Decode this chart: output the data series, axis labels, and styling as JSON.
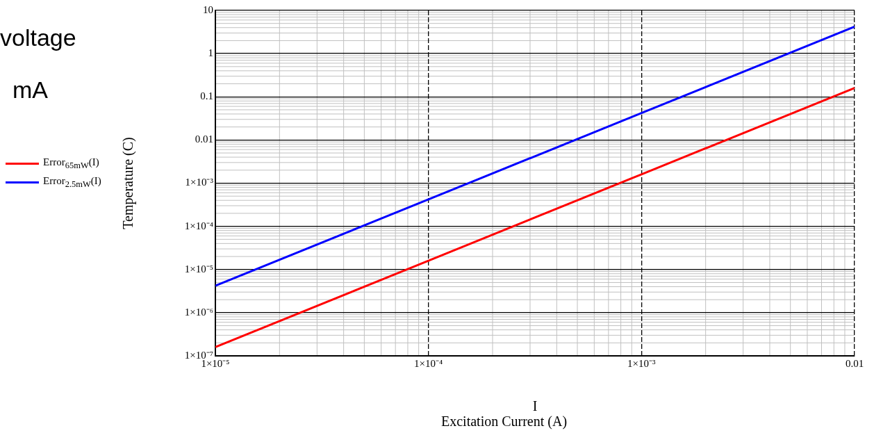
{
  "chart_data": {
    "type": "line",
    "xlabel": "I",
    "ylabel": "Temperature (C)",
    "annotations": [
      "voltage",
      "mA",
      "Excitation Current (A)"
    ],
    "log": "xy",
    "grid": true,
    "legend": "left",
    "xlim": [
      1e-05,
      0.01
    ],
    "xticks": [
      {
        "value": 1e-05,
        "label": "1×10⁻⁵"
      },
      {
        "value": 0.0001,
        "label": "1×10⁻⁴"
      },
      {
        "value": 0.001,
        "label": "1×10⁻³"
      },
      0.01
    ],
    "ylim": [
      1e-07,
      10
    ],
    "yticks": [
      {
        "value": 1e-07,
        "label": "1×10⁻⁷"
      },
      {
        "value": 1e-06,
        "label": "1×10⁻⁶"
      },
      {
        "value": 1e-05,
        "label": "1×10⁻⁵"
      },
      {
        "value": 0.0001,
        "label": "1×10⁻⁴"
      },
      {
        "value": 0.001,
        "label": "1×10⁻³"
      },
      0.01,
      0.1,
      1,
      10
    ],
    "series": [
      {
        "name": "Error$_{65mW}$(I)",
        "color": "#ff0000",
        "x": [
          1e-05,
          0.0001,
          0.001,
          0.01
        ],
        "values": [
          1.6e-07,
          1.6e-05,
          0.0016,
          0.16
        ]
      },
      {
        "name": "Error$_{2.5mW}$(I)",
        "color": "#0000ff",
        "x": [
          1e-05,
          0.0001,
          0.001,
          0.01
        ],
        "values": [
          4.2e-06,
          0.00042,
          0.042,
          4.2
        ]
      }
    ]
  }
}
